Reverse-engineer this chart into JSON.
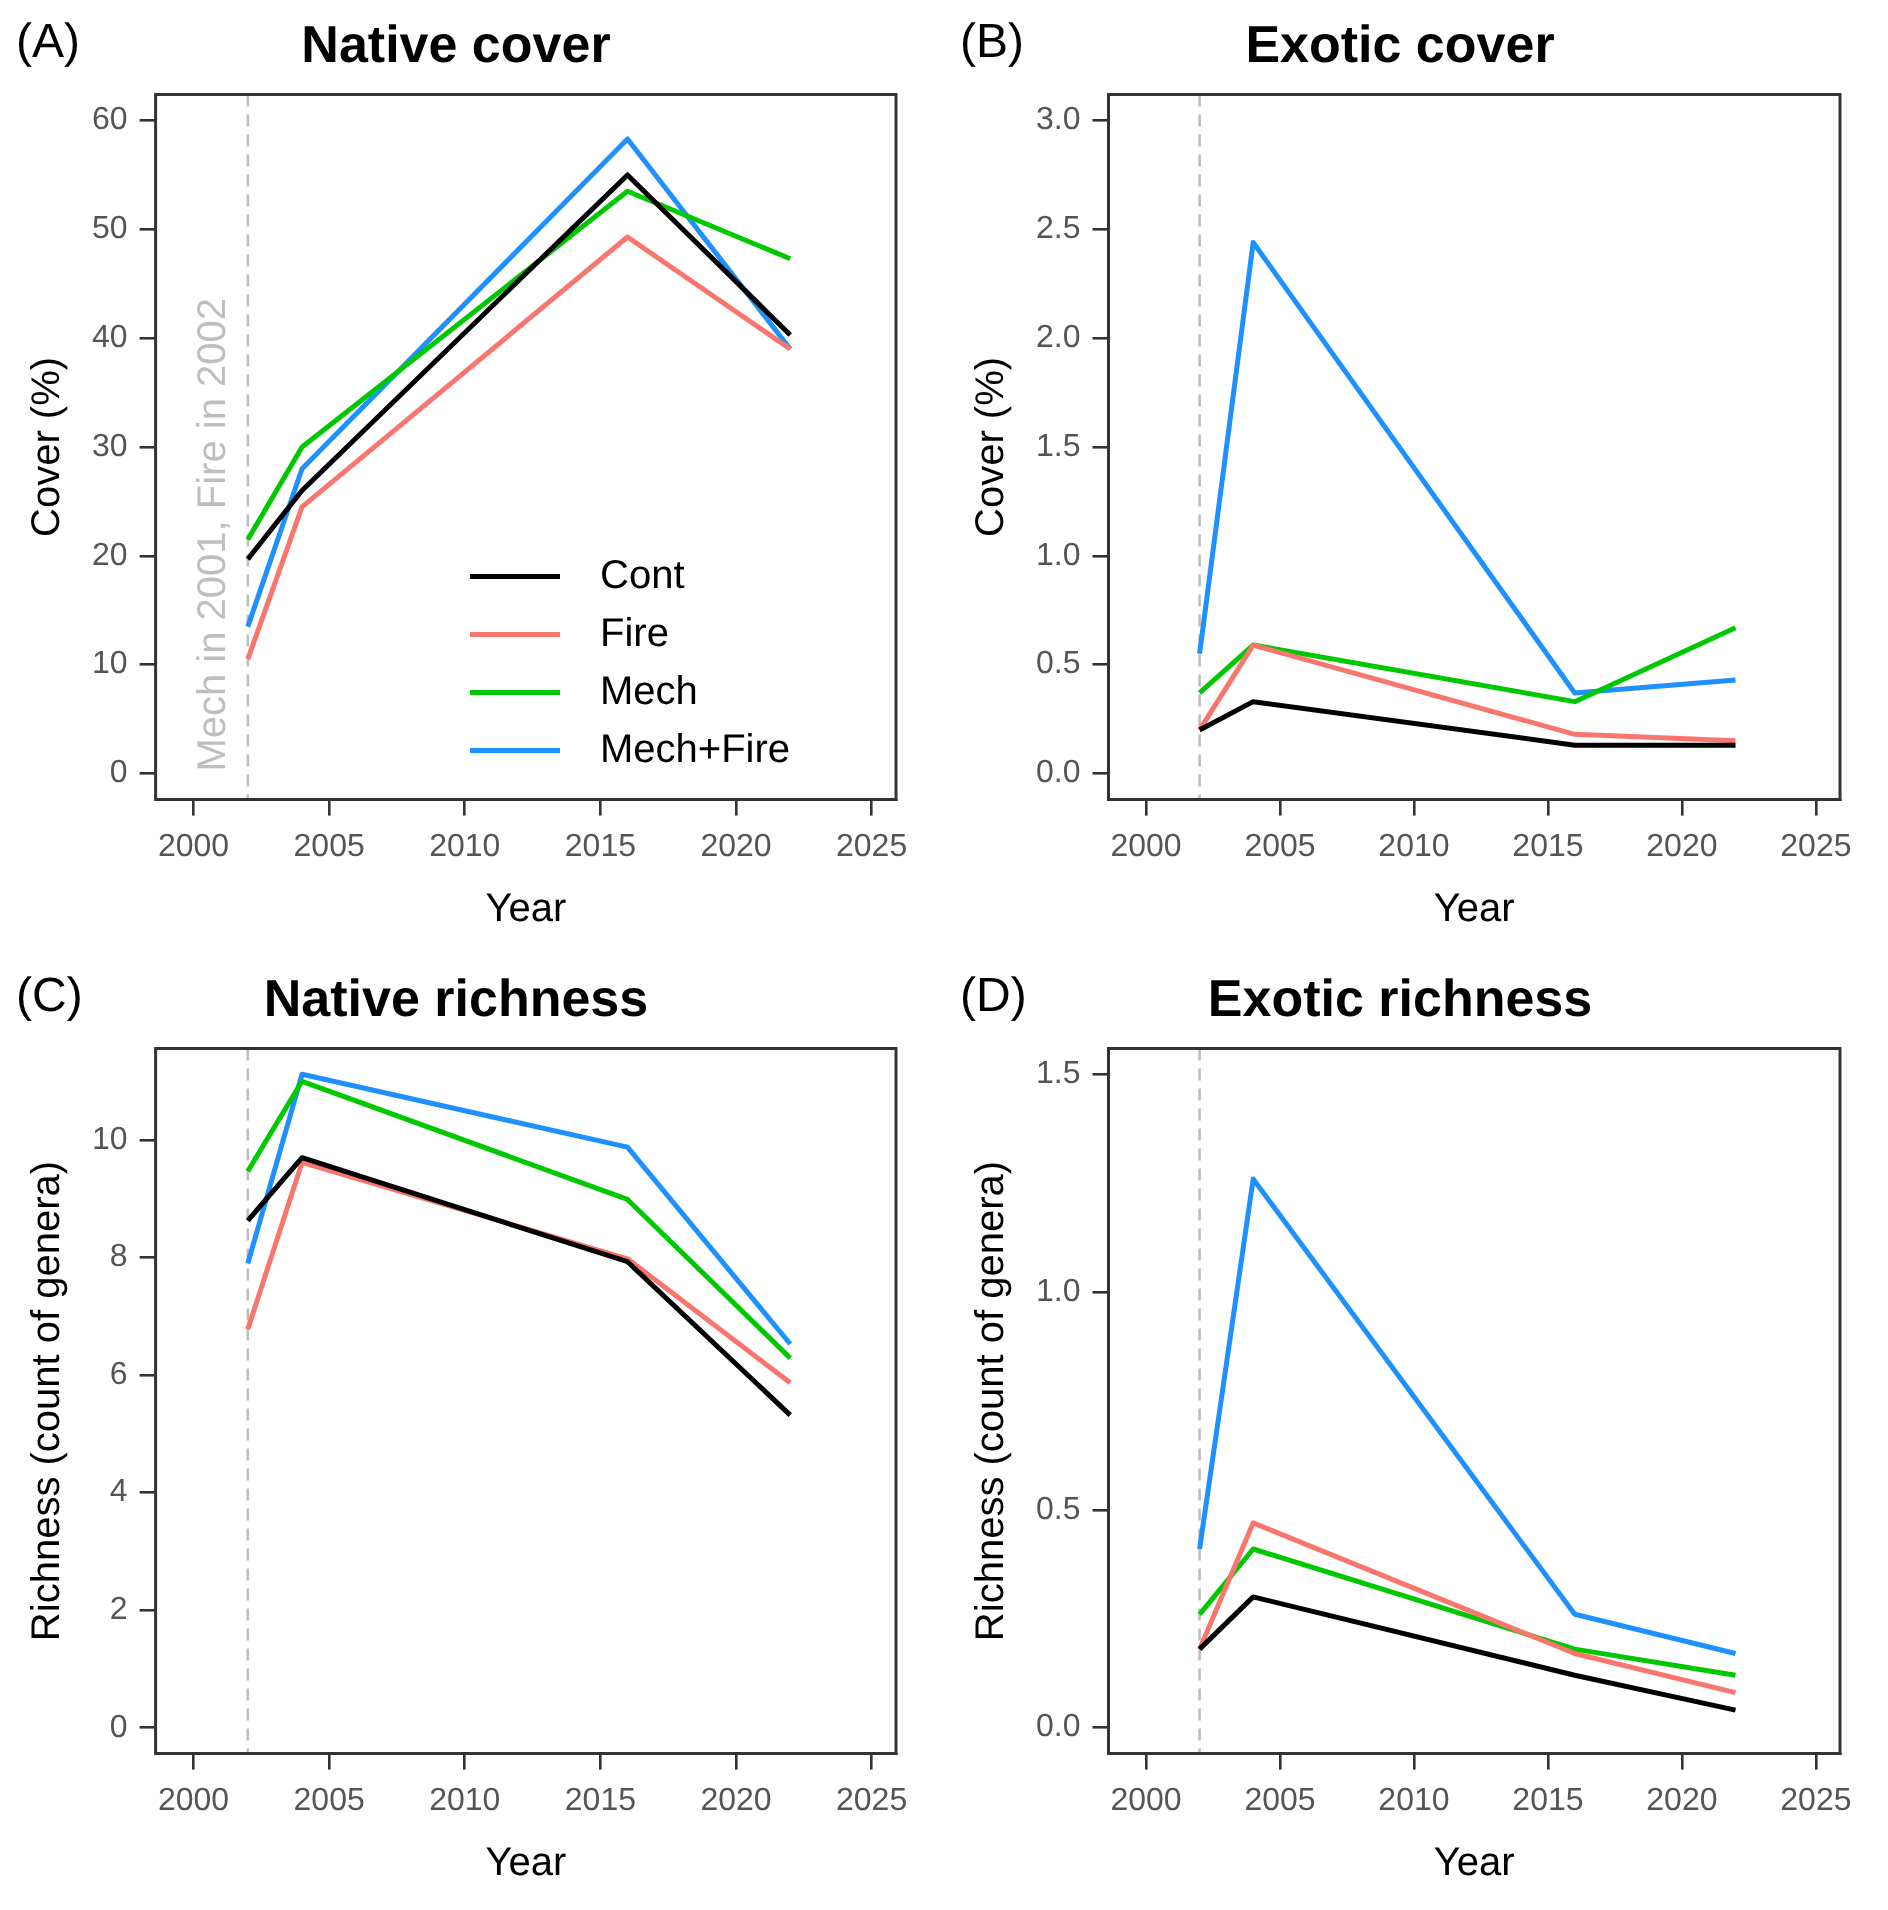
{
  "chart_data": [
    {
      "type": "line",
      "title": "Native cover",
      "xlabel": "Year",
      "ylabel": "Cover (%)",
      "annotations": [
        "(A)"
      ],
      "x": [
        2002,
        2004,
        2016,
        2022
      ],
      "xlim": [
        1998.6,
        2025.9
      ],
      "xticks": [
        2000,
        2005,
        2010,
        2015,
        2020,
        2025
      ],
      "ylim": [
        -2.4,
        62.4
      ],
      "yticks": [
        0,
        10,
        20,
        30,
        40,
        50,
        60
      ],
      "grid": false,
      "legend": "bottom right",
      "marker": "none",
      "line_style": "solid",
      "ref_lines": [
        {
          "axis": "x",
          "value": 2002,
          "label": "Mech in 2001, Fire in 2002",
          "color": "#bebebe",
          "line_style": "dashed"
        }
      ],
      "series": [
        {
          "name": "Cont",
          "color": "#000000",
          "values": [
            19.7,
            26,
            55,
            40.3
          ]
        },
        {
          "name": "Fire",
          "color": "#f8766d",
          "values": [
            10.5,
            24.5,
            49.3,
            39
          ]
        },
        {
          "name": "Mech",
          "color": "#00c800",
          "values": [
            21.5,
            30,
            53.5,
            47.3
          ]
        },
        {
          "name": "Mech+Fire",
          "color": "#1e90ff",
          "values": [
            13.5,
            28,
            58.3,
            39
          ]
        }
      ]
    },
    {
      "type": "line",
      "title": "Exotic cover",
      "xlabel": "Year",
      "ylabel": "Cover (%)",
      "annotations": [
        "(B)"
      ],
      "x": [
        2002,
        2004,
        2016,
        2022
      ],
      "xlim": [
        1998.6,
        2025.9
      ],
      "xticks": [
        2000,
        2005,
        2010,
        2015,
        2020,
        2025
      ],
      "ylim": [
        -0.12,
        3.12
      ],
      "yticks": [
        {
          "value": 0,
          "label": "0.0"
        },
        {
          "value": 0.5,
          "label": "0.5"
        },
        {
          "value": 1,
          "label": "1.0"
        },
        {
          "value": 1.5,
          "label": "1.5"
        },
        {
          "value": 2,
          "label": "2.0"
        },
        {
          "value": 2.5,
          "label": "2.5"
        },
        {
          "value": 3,
          "label": "3.0"
        }
      ],
      "grid": false,
      "marker": "none",
      "line_style": "solid",
      "ref_lines": [
        {
          "axis": "x",
          "value": 2002,
          "color": "#bebebe",
          "line_style": "dashed"
        }
      ],
      "series": [
        {
          "color": "#000000",
          "values": [
            0.2,
            0.33,
            0.13,
            0.13
          ]
        },
        {
          "color": "#f8766d",
          "values": [
            0.2,
            0.59,
            0.18,
            0.15
          ]
        },
        {
          "color": "#00c800",
          "values": [
            0.37,
            0.59,
            0.33,
            0.67
          ]
        },
        {
          "color": "#1e90ff",
          "values": [
            0.55,
            2.44,
            0.37,
            0.43
          ]
        }
      ]
    },
    {
      "type": "line",
      "title": "Native richness",
      "xlabel": "Year",
      "ylabel": "Richness (count of genera)",
      "annotations": [
        "(C)"
      ],
      "x": [
        2002,
        2004,
        2016,
        2022
      ],
      "xlim": [
        1998.6,
        2025.9
      ],
      "xticks": [
        2000,
        2005,
        2010,
        2015,
        2020,
        2025
      ],
      "ylim": [
        -0.44,
        11.56
      ],
      "yticks": [
        0,
        2,
        4,
        6,
        8,
        10
      ],
      "grid": false,
      "marker": "none",
      "line_style": "solid",
      "ref_lines": [
        {
          "axis": "x",
          "value": 2002,
          "color": "#bebebe",
          "line_style": "dashed"
        }
      ],
      "series": [
        {
          "color": "#000000",
          "values": [
            8.63,
            9.7,
            7.93,
            5.32
          ]
        },
        {
          "color": "#f8766d",
          "values": [
            6.78,
            9.62,
            7.98,
            5.87
          ]
        },
        {
          "color": "#00c800",
          "values": [
            9.47,
            11.0,
            8.99,
            6.29
          ]
        },
        {
          "color": "#1e90ff",
          "values": [
            7.9,
            11.12,
            9.88,
            6.53
          ]
        }
      ]
    },
    {
      "type": "line",
      "title": "Exotic richness",
      "xlabel": "Year",
      "ylabel": "Richness (count of genera)",
      "annotations": [
        "(D)"
      ],
      "x": [
        2002,
        2004,
        2016,
        2022
      ],
      "xlim": [
        1998.6,
        2025.9
      ],
      "xticks": [
        2000,
        2005,
        2010,
        2015,
        2020,
        2025
      ],
      "ylim": [
        -0.06,
        1.56
      ],
      "yticks": [
        {
          "value": 0,
          "label": "0.0"
        },
        {
          "value": 0.5,
          "label": "0.5"
        },
        {
          "value": 1,
          "label": "1.0"
        },
        {
          "value": 1.5,
          "label": "1.5"
        }
      ],
      "grid": false,
      "marker": "none",
      "line_style": "solid",
      "ref_lines": [
        {
          "axis": "x",
          "value": 2002,
          "color": "#bebebe",
          "line_style": "dashed"
        }
      ],
      "series": [
        {
          "color": "#000000",
          "values": [
            0.18,
            0.3,
            0.12,
            0.04
          ]
        },
        {
          "color": "#f8766d",
          "values": [
            0.18,
            0.47,
            0.17,
            0.08
          ]
        },
        {
          "color": "#00c800",
          "values": [
            0.26,
            0.41,
            0.18,
            0.12
          ]
        },
        {
          "color": "#1e90ff",
          "values": [
            0.41,
            1.26,
            0.26,
            0.17
          ]
        }
      ]
    }
  ]
}
